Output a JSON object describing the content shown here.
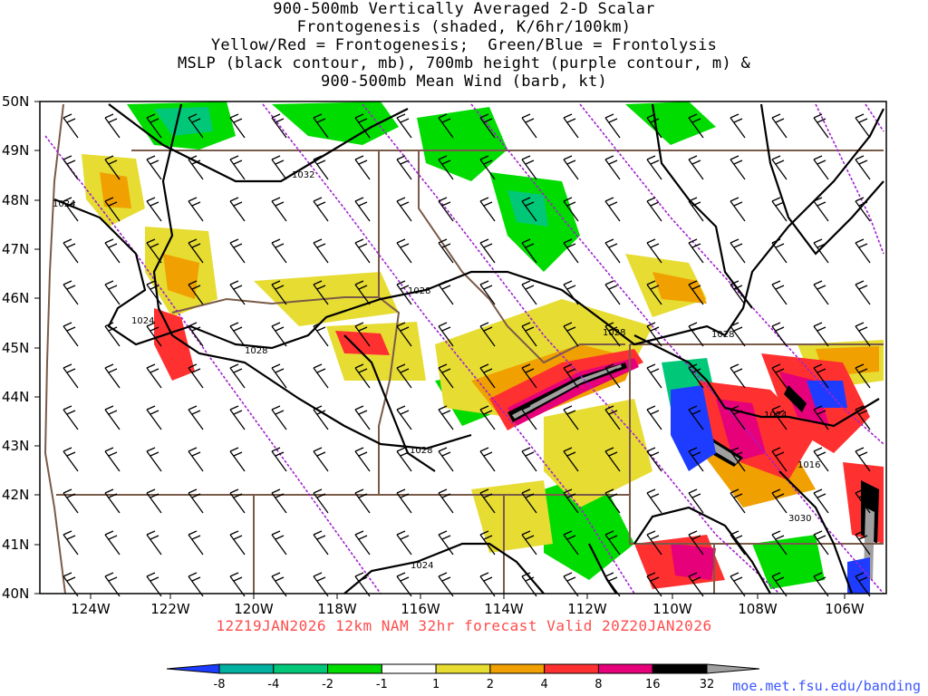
{
  "title_lines": [
    "900-500mb Vertically Averaged 2-D Scalar",
    "Frontogenesis (shaded, K/6hr/100km)",
    "Yellow/Red = Frontogenesis;  Green/Blue = Frontolysis",
    "MSLP (black contour, mb), 700mb height (purple contour, m) &",
    "900-500mb Mean Wind (barb, kt)"
  ],
  "lat_labels": [
    "50N",
    "49N",
    "48N",
    "47N",
    "46N",
    "45N",
    "44N",
    "43N",
    "42N",
    "41N",
    "40N"
  ],
  "lon_labels": [
    "124W",
    "122W",
    "120W",
    "118W",
    "116W",
    "114W",
    "112W",
    "110W",
    "108W",
    "106W"
  ],
  "contour_labels": [
    "1032",
    "1024",
    "1028",
    "1024",
    "1028",
    "1028",
    "1028",
    "1024",
    "1028",
    "1024",
    "1020",
    "1016",
    "3030"
  ],
  "forecast_line": "12Z19JAN2026 12km NAM 32hr forecast Valid 20Z20JAN2026",
  "colorbar": {
    "ticks": [
      "-8",
      "-4",
      "-2",
      "-1",
      "1",
      "2",
      "4",
      "8",
      "16",
      "32"
    ],
    "colors": [
      "#1e3cff",
      "#00b0a0",
      "#00c878",
      "#00dc00",
      "#ffffff",
      "#e6dc32",
      "#f0a000",
      "#ff3030",
      "#e6007a",
      "#000000",
      "#a0a0a0"
    ]
  },
  "site": "moe.met.fsu.edu/banding",
  "colors": {
    "frontogenesis_light": "#e6dc32",
    "frontogenesis_mod": "#f0a000",
    "frontogenesis_strong": "#ff3030",
    "frontogenesis_vstrong": "#e6007a",
    "frontolysis_light": "#00dc00",
    "frontolysis_mod": "#00c878",
    "frontolysis_strong": "#1e3cff",
    "mslp_contour": "#000000",
    "height_contour": "#a020d0",
    "border": "#7a5a48"
  }
}
